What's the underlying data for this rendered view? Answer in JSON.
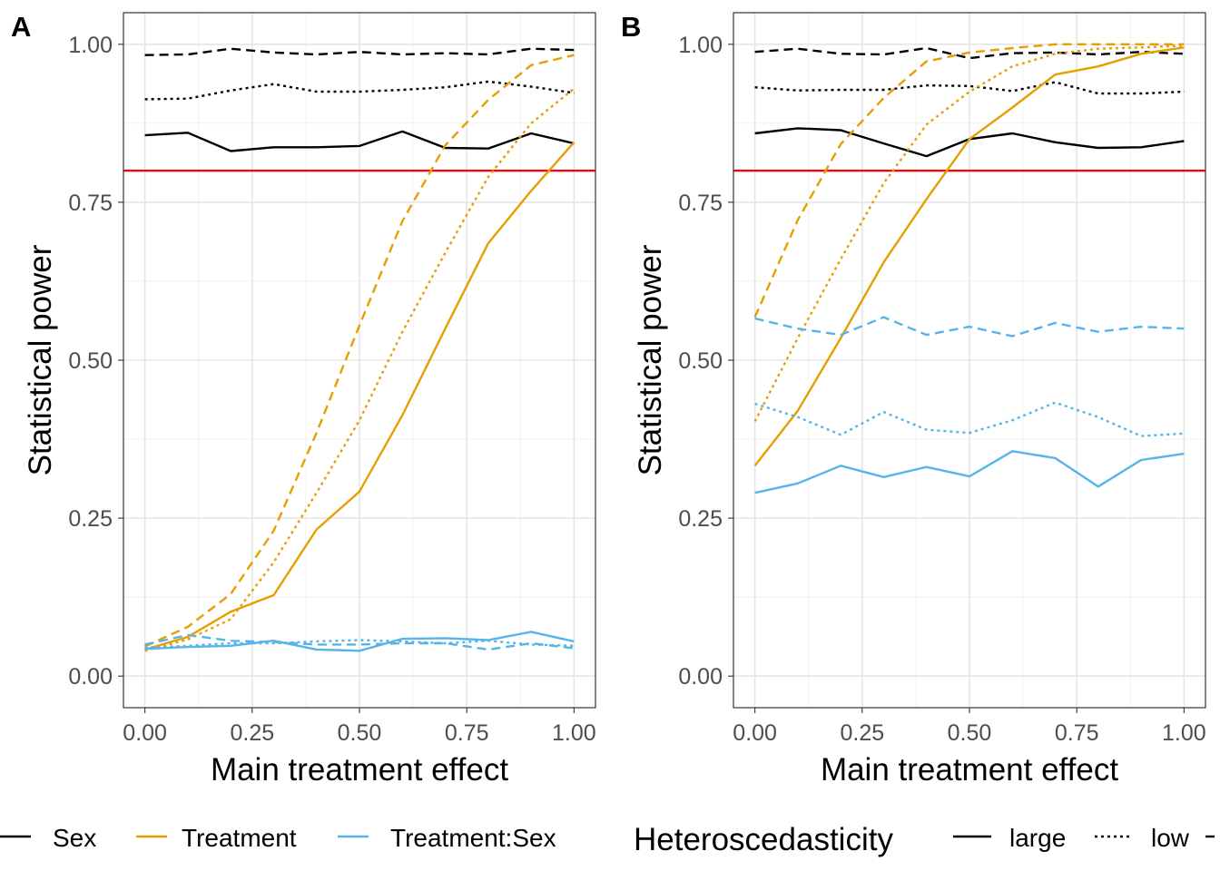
{
  "colors": {
    "Sex": "#000000",
    "Treatment": "#E69F00",
    "Treatment:Sex": "#56B4E9",
    "reference": "#FF0000"
  },
  "legend": {
    "effect_entries": [
      "Sex",
      "Treatment",
      "Treatment:Sex"
    ],
    "hetero_title": "Heteroscedasticity",
    "hetero_entries": [
      "large",
      "low"
    ]
  },
  "chart_data": [
    {
      "type": "line",
      "panel_tag": "A",
      "xlabel": "Main treatment effect",
      "ylabel": "Statistical power",
      "xlim": [
        -0.05,
        1.05
      ],
      "ylim": [
        -0.05,
        1.05
      ],
      "x_ticks": [
        "0.00",
        "0.25",
        "0.50",
        "0.75",
        "1.00"
      ],
      "y_ticks": [
        "0.00",
        "0.25",
        "0.50",
        "0.75",
        "1.00"
      ],
      "reference_line_y": 0.8,
      "grid": true,
      "x": [
        0,
        0.1,
        0.2,
        0.3,
        0.4,
        0.5,
        0.6,
        0.7,
        0.8,
        0.9,
        1.0
      ],
      "series": [
        {
          "effect": "Sex",
          "hetero": "large",
          "values": [
            0.856,
            0.86,
            0.831,
            0.837,
            0.837,
            0.839,
            0.862,
            0.836,
            0.835,
            0.859,
            0.843
          ]
        },
        {
          "effect": "Sex",
          "hetero": "low",
          "values": [
            0.913,
            0.914,
            0.927,
            0.937,
            0.925,
            0.925,
            0.928,
            0.932,
            0.941,
            0.933,
            0.923
          ]
        },
        {
          "effect": "Sex",
          "hetero": "dashed",
          "values": [
            0.983,
            0.984,
            0.993,
            0.987,
            0.984,
            0.988,
            0.984,
            0.986,
            0.984,
            0.993,
            0.991
          ]
        },
        {
          "effect": "Treatment",
          "hetero": "large",
          "values": [
            0.042,
            0.062,
            0.102,
            0.128,
            0.232,
            0.292,
            0.413,
            0.55,
            0.685,
            0.768,
            0.845
          ]
        },
        {
          "effect": "Treatment",
          "hetero": "low",
          "values": [
            0.04,
            0.058,
            0.09,
            0.18,
            0.29,
            0.405,
            0.545,
            0.67,
            0.79,
            0.875,
            0.93
          ]
        },
        {
          "effect": "Treatment",
          "hetero": "dashed",
          "values": [
            0.047,
            0.078,
            0.13,
            0.23,
            0.385,
            0.555,
            0.72,
            0.84,
            0.912,
            0.967,
            0.983
          ]
        },
        {
          "effect": "Treatment:Sex",
          "hetero": "large",
          "values": [
            0.043,
            0.046,
            0.048,
            0.056,
            0.042,
            0.04,
            0.059,
            0.06,
            0.057,
            0.07,
            0.055
          ]
        },
        {
          "effect": "Treatment:Sex",
          "hetero": "low",
          "values": [
            0.045,
            0.048,
            0.052,
            0.052,
            0.055,
            0.057,
            0.055,
            0.052,
            0.056,
            0.05,
            0.048
          ]
        },
        {
          "effect": "Treatment:Sex",
          "hetero": "dashed",
          "values": [
            0.05,
            0.065,
            0.056,
            0.054,
            0.05,
            0.05,
            0.052,
            0.052,
            0.042,
            0.052,
            0.044
          ]
        }
      ]
    },
    {
      "type": "line",
      "panel_tag": "B",
      "xlabel": "Main treatment effect",
      "ylabel": "Statistical power",
      "xlim": [
        -0.05,
        1.05
      ],
      "ylim": [
        -0.05,
        1.05
      ],
      "x_ticks": [
        "0.00",
        "0.25",
        "0.50",
        "0.75",
        "1.00"
      ],
      "y_ticks": [
        "0.00",
        "0.25",
        "0.50",
        "0.75",
        "1.00"
      ],
      "reference_line_y": 0.8,
      "grid": true,
      "x": [
        0,
        0.1,
        0.2,
        0.3,
        0.4,
        0.5,
        0.6,
        0.7,
        0.8,
        0.9,
        1.0
      ],
      "series": [
        {
          "effect": "Sex",
          "hetero": "large",
          "values": [
            0.859,
            0.867,
            0.864,
            0.843,
            0.823,
            0.85,
            0.859,
            0.845,
            0.836,
            0.837,
            0.847
          ]
        },
        {
          "effect": "Sex",
          "hetero": "low",
          "values": [
            0.932,
            0.927,
            0.928,
            0.928,
            0.935,
            0.934,
            0.926,
            0.94,
            0.922,
            0.922,
            0.925
          ]
        },
        {
          "effect": "Sex",
          "hetero": "dashed",
          "values": [
            0.988,
            0.993,
            0.985,
            0.984,
            0.994,
            0.978,
            0.986,
            0.987,
            0.984,
            0.988,
            0.985
          ]
        },
        {
          "effect": "Treatment",
          "hetero": "large",
          "values": [
            0.333,
            0.42,
            0.535,
            0.655,
            0.755,
            0.85,
            0.9,
            0.952,
            0.965,
            0.985,
            0.995
          ]
        },
        {
          "effect": "Treatment",
          "hetero": "low",
          "values": [
            0.403,
            0.535,
            0.66,
            0.78,
            0.873,
            0.925,
            0.965,
            0.985,
            0.993,
            0.995,
            0.998
          ]
        },
        {
          "effect": "Treatment",
          "hetero": "dashed",
          "values": [
            0.568,
            0.722,
            0.842,
            0.915,
            0.973,
            0.987,
            0.994,
            1.0,
            1.0,
            1.0,
            1.0
          ]
        },
        {
          "effect": "Treatment:Sex",
          "hetero": "large",
          "values": [
            0.29,
            0.305,
            0.333,
            0.315,
            0.331,
            0.316,
            0.356,
            0.345,
            0.3,
            0.342,
            0.352
          ]
        },
        {
          "effect": "Treatment:Sex",
          "hetero": "low",
          "values": [
            0.431,
            0.41,
            0.382,
            0.418,
            0.39,
            0.385,
            0.405,
            0.433,
            0.41,
            0.38,
            0.384
          ]
        },
        {
          "effect": "Treatment:Sex",
          "hetero": "dashed",
          "values": [
            0.566,
            0.55,
            0.54,
            0.568,
            0.54,
            0.553,
            0.538,
            0.559,
            0.545,
            0.553,
            0.55
          ]
        }
      ]
    }
  ]
}
